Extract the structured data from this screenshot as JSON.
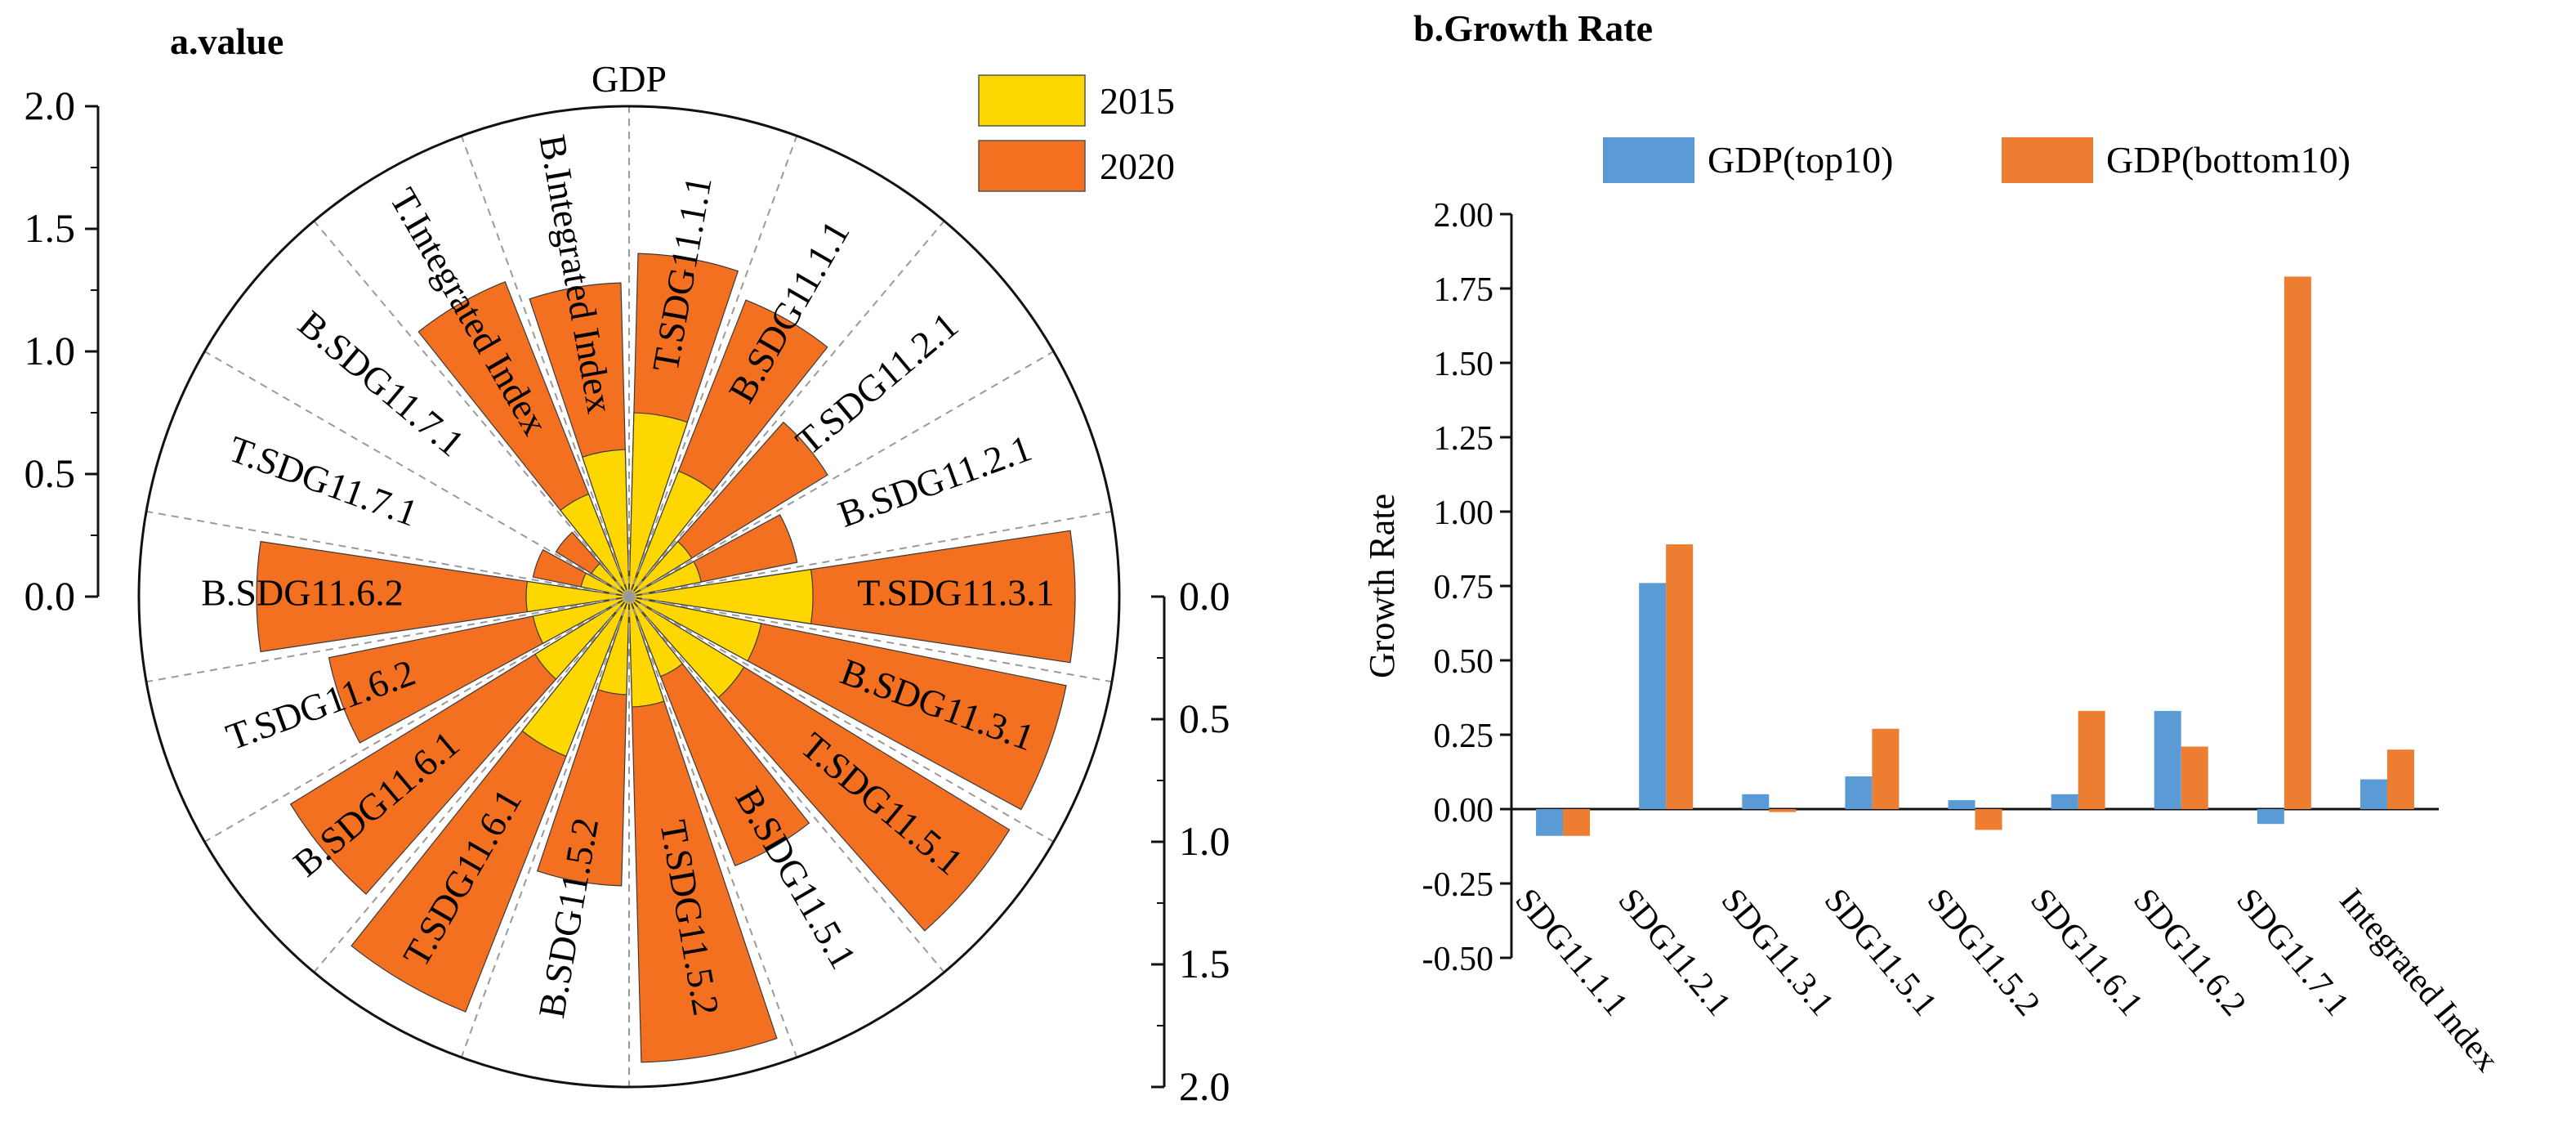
{
  "panel_a_title": "a.value",
  "panel_b_title": "b.Growth Rate",
  "chart_data": [
    {
      "type": "polar-bar",
      "title": "a.value",
      "center_label": "GDP",
      "r_axis": {
        "range": [
          0,
          2.0
        ],
        "ticks": [
          "0.0",
          "0.5",
          "1.0",
          "1.5",
          "2.0"
        ]
      },
      "categories": [
        "T.SDG11.1.1",
        "B.SDG11.1.1",
        "T.SDG11.2.1",
        "B.SDG11.2.1",
        "T.SDG11.3.1",
        "B.SDG11.3.1",
        "T.SDG11.5.1",
        "B.SDG11.5.1",
        "T.SDG11.5.2",
        "B.SDG11.5.2",
        "T.SDG11.6.1",
        "B.SDG11.6.1",
        "T.SDG11.6.2",
        "B.SDG11.6.2",
        "T.SDG11.7.1",
        "B.SDG11.7.1",
        "T.Integrated Index",
        "B.Integrated Index"
      ],
      "series": [
        {
          "name": "2020",
          "color": "#F37021",
          "values": [
            1.4,
            1.3,
            0.95,
            0.7,
            1.82,
            1.82,
            1.82,
            1.18,
            1.9,
            1.18,
            1.82,
            1.62,
            1.25,
            1.52,
            0.4,
            0.35,
            1.38,
            1.28
          ]
        },
        {
          "name": "2015",
          "color": "#FFD700",
          "values": [
            0.75,
            0.55,
            0.3,
            0.3,
            0.75,
            0.55,
            0.55,
            0.35,
            0.45,
            0.4,
            0.7,
            0.45,
            0.4,
            0.42,
            0.2,
            0.18,
            0.45,
            0.6
          ]
        }
      ],
      "legend": [
        "2015",
        "2020"
      ]
    },
    {
      "type": "bar",
      "title": "b.Growth Rate",
      "ylabel": "Growth Rate",
      "ylim": [
        -0.5,
        2.0
      ],
      "yticks": [
        "2.00",
        "1.75",
        "1.50",
        "1.25",
        "1.00",
        "0.75",
        "0.50",
        "0.25",
        "0.00",
        "-0.25",
        "-0.50"
      ],
      "categories": [
        "SDG11.1.1",
        "SDG11.2.1",
        "SDG11.3.1",
        "SDG11.5.1",
        "SDG11.5.2",
        "SDG11.6.1",
        "SDG11.6.2",
        "SDG11.7.1",
        "Integrated Index"
      ],
      "series": [
        {
          "name": "GDP(top10)",
          "color": "#5B9BD5",
          "values": [
            -0.09,
            0.76,
            0.05,
            0.11,
            0.03,
            0.05,
            0.33,
            -0.05,
            0.1
          ]
        },
        {
          "name": "GDP(bottom10)",
          "color": "#ED7D31",
          "values": [
            -0.09,
            0.89,
            -0.01,
            0.27,
            -0.07,
            0.33,
            0.21,
            1.79,
            0.2
          ]
        }
      ]
    }
  ]
}
